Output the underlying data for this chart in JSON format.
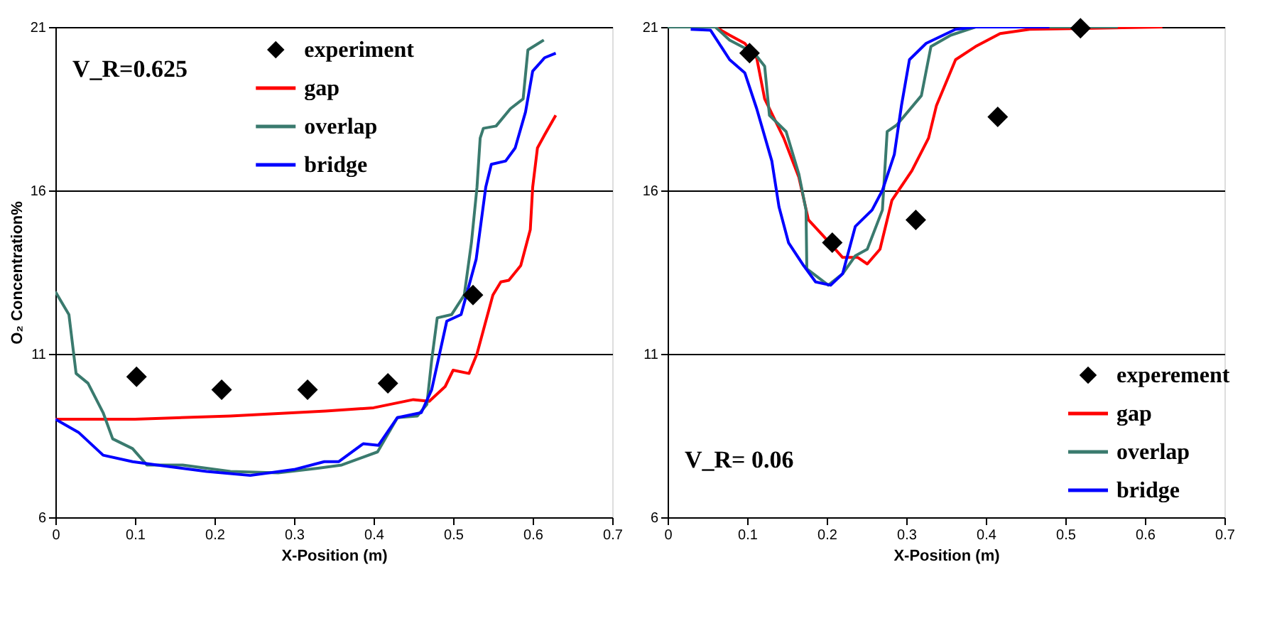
{
  "chart_data": [
    {
      "type": "line",
      "xlabel": "X-Position (m)",
      "ylabel": "O₂ Concentration%",
      "xlim": [
        0,
        0.7
      ],
      "xticks": [
        0,
        0.1,
        0.2,
        0.3,
        0.4,
        0.5,
        0.6,
        0.7
      ],
      "ylim": [
        6,
        21
      ],
      "yticks": [
        6,
        11,
        16,
        21
      ],
      "grid": "y",
      "legend": "top",
      "annotations": [
        "V_R=0.625"
      ],
      "series": [
        {
          "name": "experiment",
          "type": "scatter",
          "marker": "diamond",
          "color": "#000000",
          "x": [
            0.102,
            0.209,
            0.317,
            0.418,
            0.525
          ],
          "values": [
            10.3,
            9.9,
            9.9,
            10.1,
            12.8
          ]
        },
        {
          "name": "gap",
          "color": "#ff0000",
          "x": [
            0,
            0.1,
            0.22,
            0.34,
            0.4,
            0.45,
            0.47,
            0.49,
            0.5,
            0.52,
            0.53,
            0.54,
            0.55,
            0.56,
            0.57,
            0.585,
            0.597,
            0.6,
            0.606,
            0.615,
            0.629
          ],
          "values": [
            9.0,
            9.0,
            9.1,
            9.25,
            9.35,
            9.6,
            9.55,
            10.0,
            10.5,
            10.4,
            11.0,
            11.9,
            12.8,
            13.2,
            13.25,
            13.7,
            14.8,
            16.1,
            17.3,
            17.7,
            18.3
          ]
        },
        {
          "name": "overlap",
          "color": "#3a7a6e",
          "x": [
            0,
            0.017,
            0.026,
            0.041,
            0.06,
            0.072,
            0.097,
            0.115,
            0.16,
            0.22,
            0.28,
            0.33,
            0.36,
            0.405,
            0.43,
            0.455,
            0.467,
            0.473,
            0.48,
            0.498,
            0.514,
            0.523,
            0.53,
            0.534,
            0.538,
            0.554,
            0.572,
            0.588,
            0.594,
            0.614
          ],
          "values": [
            12.9,
            12.2,
            10.4,
            10.1,
            9.2,
            8.4,
            8.1,
            7.6,
            7.6,
            7.4,
            7.36,
            7.5,
            7.6,
            8.0,
            9.05,
            9.1,
            9.45,
            10.8,
            12.1,
            12.2,
            12.8,
            14.4,
            16.1,
            17.6,
            17.9,
            17.97,
            18.5,
            18.8,
            20.3,
            20.6
          ]
        },
        {
          "name": "bridge",
          "color": "#0000ff",
          "x": [
            0,
            0.029,
            0.06,
            0.097,
            0.128,
            0.19,
            0.245,
            0.3,
            0.338,
            0.356,
            0.387,
            0.406,
            0.43,
            0.46,
            0.473,
            0.492,
            0.51,
            0.529,
            0.541,
            0.548,
            0.566,
            0.578,
            0.591,
            0.6,
            0.615,
            0.629
          ],
          "values": [
            9.0,
            8.6,
            7.9,
            7.7,
            7.6,
            7.4,
            7.28,
            7.46,
            7.7,
            7.7,
            8.25,
            8.2,
            9.05,
            9.2,
            9.9,
            12.0,
            12.2,
            13.9,
            16.1,
            16.8,
            16.9,
            17.3,
            18.4,
            19.65,
            20.06,
            20.2
          ]
        }
      ]
    },
    {
      "type": "line",
      "xlabel": "X-Position (m)",
      "xlim": [
        0,
        0.7
      ],
      "xticks": [
        0,
        0.1,
        0.2,
        0.3,
        0.4,
        0.5,
        0.6,
        0.7
      ],
      "ylim": [
        6,
        21
      ],
      "yticks": [
        6,
        11,
        16,
        21
      ],
      "grid": "y",
      "legend": "bottom right",
      "annotations": [
        "V_R= 0.06"
      ],
      "series": [
        {
          "name": "experement",
          "type": "scatter",
          "marker": "diamond",
          "color": "#000000",
          "x": [
            0.103,
            0.207,
            0.312,
            0.415,
            0.519
          ],
          "values": [
            20.2,
            14.4,
            15.1,
            18.25,
            20.96
          ]
        },
        {
          "name": "gap",
          "color": "#ff0000",
          "x": [
            0,
            0.06,
            0.078,
            0.097,
            0.112,
            0.122,
            0.146,
            0.165,
            0.177,
            0.196,
            0.22,
            0.239,
            0.251,
            0.267,
            0.282,
            0.307,
            0.328,
            0.338,
            0.362,
            0.387,
            0.418,
            0.455,
            0.622
          ],
          "values": [
            21.0,
            21.0,
            20.75,
            20.5,
            20.05,
            18.8,
            17.6,
            16.4,
            15.1,
            14.6,
            13.95,
            13.95,
            13.75,
            14.2,
            15.7,
            16.6,
            17.6,
            18.6,
            20.0,
            20.4,
            20.8,
            20.93,
            21.0
          ]
        },
        {
          "name": "overlap",
          "color": "#3a7a6e",
          "x": [
            0,
            0.06,
            0.078,
            0.109,
            0.122,
            0.128,
            0.149,
            0.165,
            0.174,
            0.175,
            0.202,
            0.22,
            0.236,
            0.251,
            0.27,
            0.276,
            0.288,
            0.319,
            0.331,
            0.356,
            0.387,
            0.566
          ],
          "values": [
            21.0,
            21.0,
            20.6,
            20.2,
            19.8,
            18.3,
            17.8,
            16.5,
            15.4,
            13.6,
            13.1,
            13.45,
            14.0,
            14.2,
            15.4,
            17.8,
            18.0,
            18.9,
            20.4,
            20.75,
            21.0,
            21.0
          ]
        },
        {
          "name": "bridge",
          "color": "#0000ff",
          "x": [
            0.029,
            0.054,
            0.078,
            0.097,
            0.112,
            0.131,
            0.14,
            0.152,
            0.171,
            0.186,
            0.205,
            0.22,
            0.236,
            0.257,
            0.27,
            0.285,
            0.294,
            0.304,
            0.325,
            0.362,
            0.387,
            0.48
          ],
          "values": [
            20.93,
            20.9,
            20.0,
            19.6,
            18.5,
            16.9,
            15.5,
            14.4,
            13.7,
            13.2,
            13.1,
            13.45,
            14.9,
            15.4,
            16.0,
            17.1,
            18.6,
            20.0,
            20.5,
            20.93,
            21.0,
            21.0
          ]
        }
      ]
    }
  ]
}
